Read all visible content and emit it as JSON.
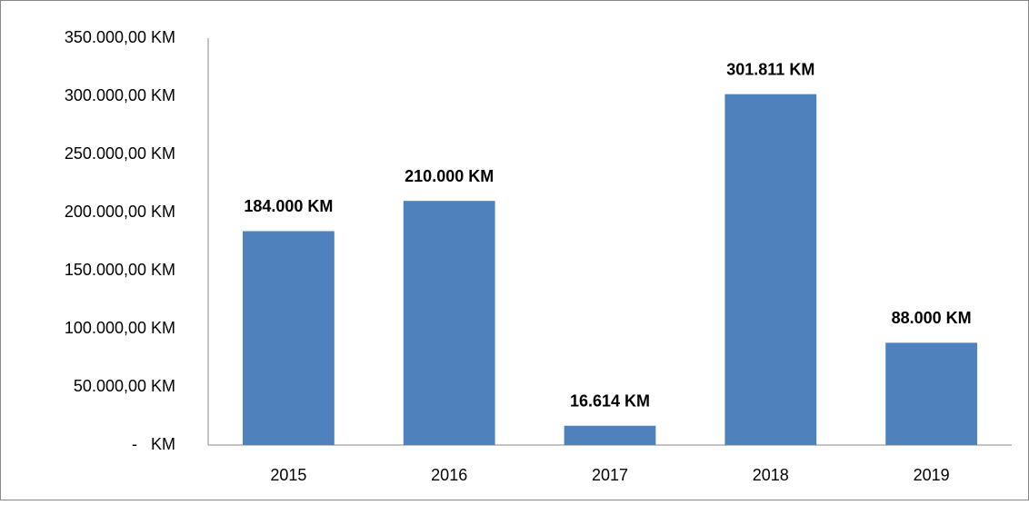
{
  "chart_data": {
    "type": "bar",
    "categories": [
      "2015",
      "2016",
      "2017",
      "2018",
      "2019"
    ],
    "values": [
      184000,
      210000,
      16614,
      301811,
      88000
    ],
    "value_labels": [
      "184.000 KM",
      "210.000 KM",
      "16.614 KM",
      "301.811 KM",
      "88.000 KM"
    ],
    "color": "#4f81bd",
    "ylim": [
      0,
      350000
    ],
    "yticks": [
      {
        "value": 0,
        "label": "-   KM"
      },
      {
        "value": 50000,
        "label": "50.000,00 KM"
      },
      {
        "value": 100000,
        "label": "100.000,00 KM"
      },
      {
        "value": 150000,
        "label": "150.000,00 KM"
      },
      {
        "value": 200000,
        "label": "200.000,00 KM"
      },
      {
        "value": 250000,
        "label": "250.000,00 KM"
      },
      {
        "value": 300000,
        "label": "300.000,00 KM"
      },
      {
        "value": 350000,
        "label": "350.000,00 KM"
      }
    ],
    "grid": false
  }
}
